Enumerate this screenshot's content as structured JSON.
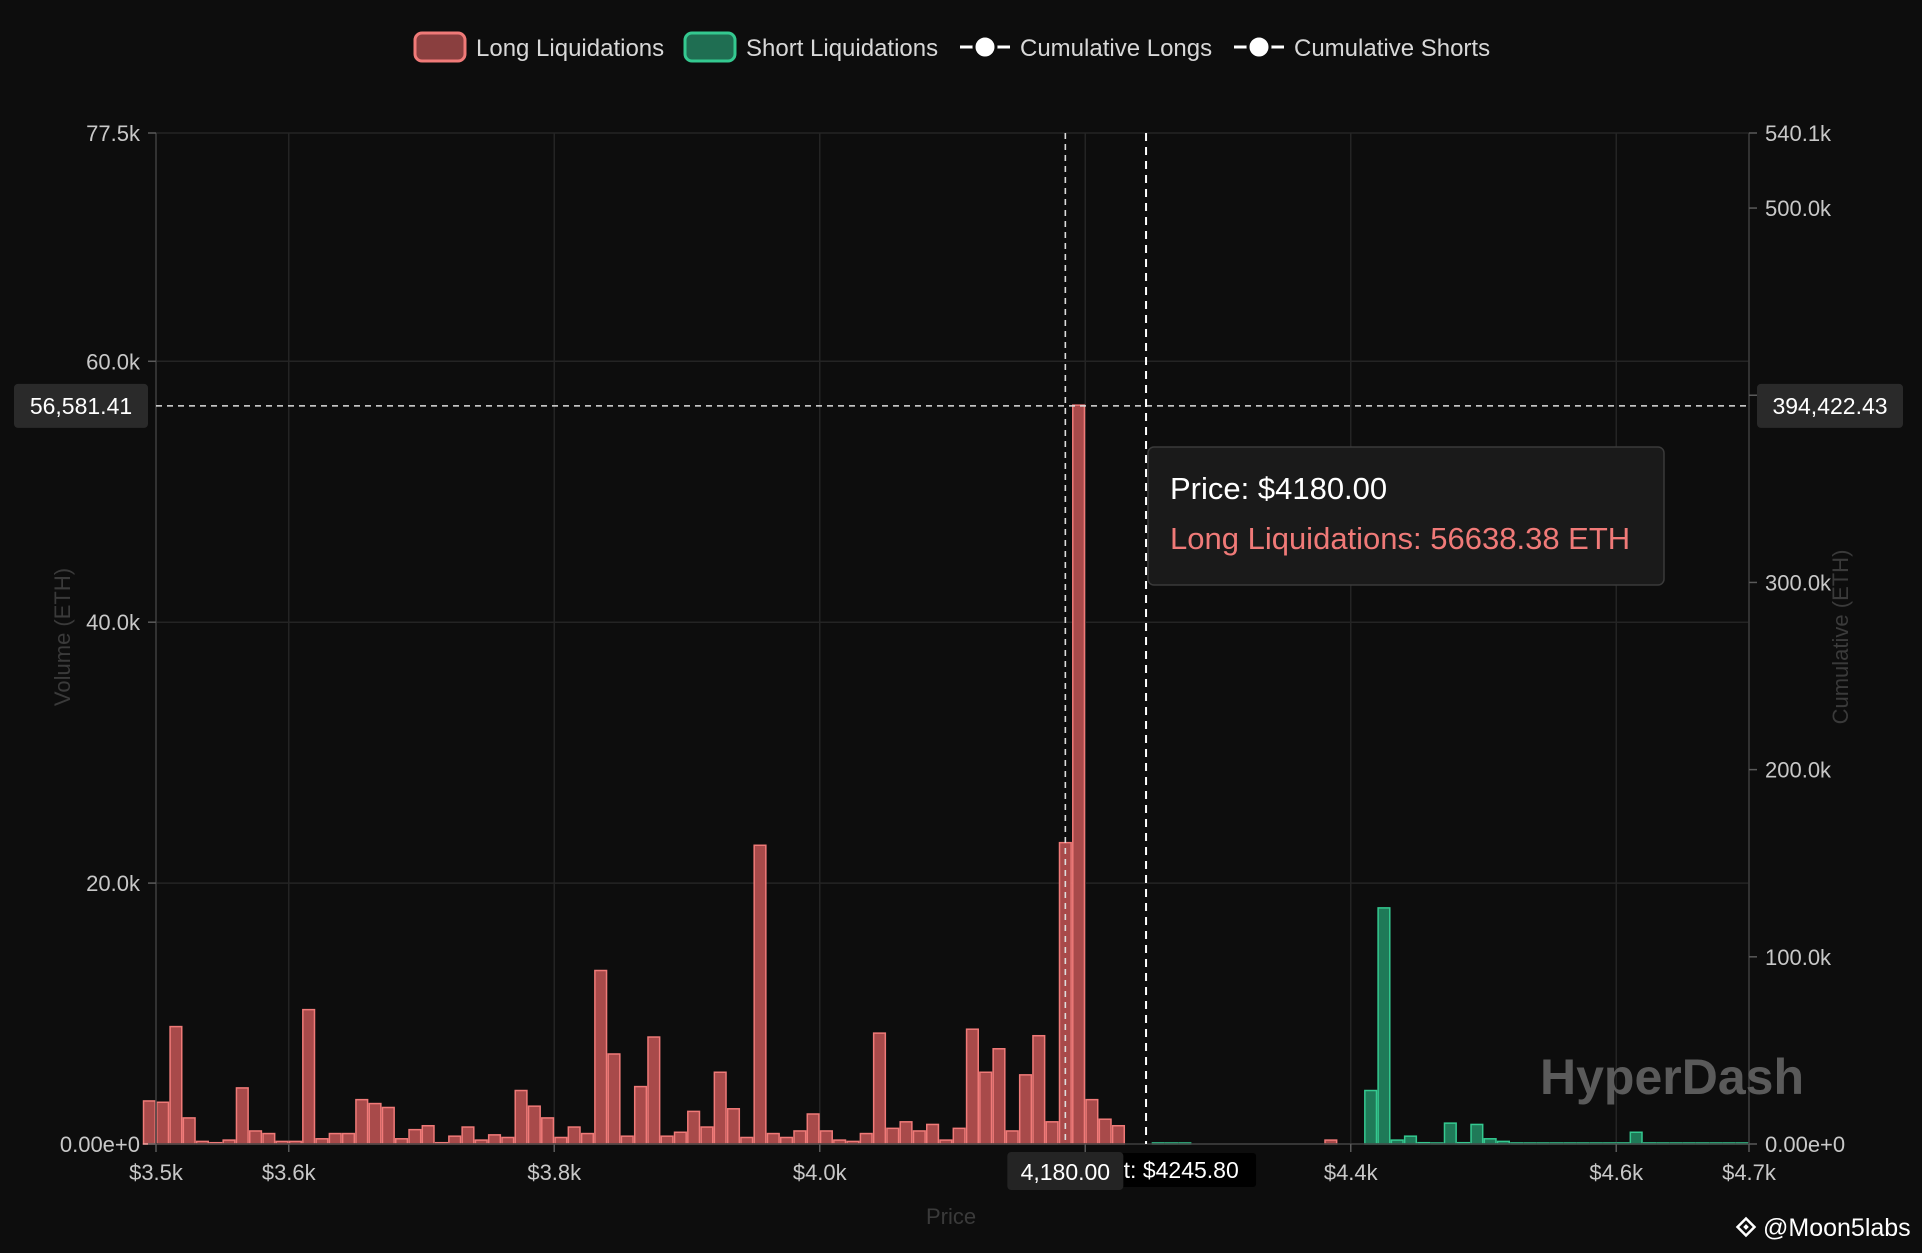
{
  "chart_data": {
    "type": "bar",
    "xlabel": "Price",
    "ylabel": "Volume (ETH)",
    "y2label": "Cumulative (ETH)",
    "xlim": [
      3500,
      4700
    ],
    "ylim": [
      0,
      77500
    ],
    "y2lim": [
      0,
      540100
    ],
    "bin_width": 10,
    "x_ticks": [
      {
        "value": 3500,
        "label": "$3.5k"
      },
      {
        "value": 3600,
        "label": "$3.6k"
      },
      {
        "value": 3800,
        "label": "$3.8k"
      },
      {
        "value": 4000,
        "label": "$4.0k"
      },
      {
        "value": 4200,
        "label": ""
      },
      {
        "value": 4400,
        "label": "$4.4k"
      },
      {
        "value": 4600,
        "label": "$4.6k"
      },
      {
        "value": 4700,
        "label": "$4.7k"
      }
    ],
    "y_ticks": [
      {
        "value": 0,
        "label": "0.00e+0"
      },
      {
        "value": 20000,
        "label": "20.0k"
      },
      {
        "value": 40000,
        "label": "40.0k"
      },
      {
        "value": 60000,
        "label": "60.0k"
      },
      {
        "value": 77500,
        "label": "77.5k"
      }
    ],
    "y2_ticks": [
      {
        "value": 0,
        "label": "0.00e+0"
      },
      {
        "value": 100000,
        "label": "100.0k"
      },
      {
        "value": 200000,
        "label": "200.0k"
      },
      {
        "value": 300000,
        "label": "300.0k"
      },
      {
        "value": 400000,
        "label": "400.0k"
      },
      {
        "value": 500000,
        "label": "500.0k"
      },
      {
        "value": 540100,
        "label": "540.1k"
      }
    ],
    "legend": [
      {
        "name": "Long Liquidations",
        "kind": "box",
        "color": "#f07a78",
        "fill": "#8a3f3f"
      },
      {
        "name": "Short Liquidations",
        "kind": "box",
        "color": "#34c990",
        "fill": "#1f6e52"
      },
      {
        "name": "Cumulative Longs",
        "kind": "line",
        "color": "#ffffff"
      },
      {
        "name": "Cumulative Shorts",
        "kind": "line",
        "color": "#ffffff"
      }
    ],
    "legend_position": "top-center",
    "grid": true,
    "series": [
      {
        "name": "Long Liquidations",
        "color": "#f07a78",
        "fill": "#a84a4a",
        "x": [
          3490,
          3500,
          3510,
          3520,
          3530,
          3540,
          3550,
          3560,
          3570,
          3580,
          3590,
          3600,
          3610,
          3620,
          3630,
          3640,
          3650,
          3660,
          3670,
          3680,
          3690,
          3700,
          3710,
          3720,
          3730,
          3740,
          3750,
          3760,
          3770,
          3780,
          3790,
          3800,
          3810,
          3820,
          3830,
          3840,
          3850,
          3860,
          3870,
          3880,
          3890,
          3900,
          3910,
          3920,
          3930,
          3940,
          3950,
          3960,
          3970,
          3980,
          3990,
          4000,
          4010,
          4020,
          4030,
          4040,
          4050,
          4060,
          4070,
          4080,
          4090,
          4100,
          4110,
          4120,
          4130,
          4140,
          4150,
          4160,
          4170,
          4180,
          4190,
          4200,
          4210,
          4220,
          4380
        ],
        "values": [
          3300,
          3200,
          9000,
          2000,
          200,
          100,
          300,
          4300,
          1000,
          800,
          200,
          200,
          10300,
          400,
          800,
          800,
          3400,
          3100,
          2800,
          400,
          1100,
          1400,
          100,
          600,
          1300,
          300,
          700,
          500,
          4100,
          2900,
          2000,
          500,
          1300,
          800,
          13300,
          6900,
          600,
          4400,
          8200,
          600,
          900,
          2500,
          1300,
          5500,
          2700,
          500,
          22900,
          800,
          500,
          1000,
          2300,
          1000,
          300,
          200,
          800,
          8500,
          1200,
          1700,
          1000,
          1500,
          300,
          1200,
          8800,
          5500,
          7300,
          1000,
          5300,
          8300,
          1700,
          23100,
          56638,
          3400,
          1900,
          1400,
          300
        ]
      },
      {
        "name": "Short Liquidations",
        "color": "#34c990",
        "fill": "#1f7a58",
        "x": [
          4250,
          4260,
          4270,
          4410,
          4420,
          4430,
          4440,
          4450,
          4460,
          4470,
          4480,
          4490,
          4500,
          4510,
          4520,
          4530,
          4540,
          4550,
          4560,
          4570,
          4580,
          4590,
          4600,
          4610,
          4620,
          4630,
          4640,
          4650,
          4660,
          4670,
          4680,
          4690
        ],
        "values": [
          80,
          60,
          50,
          4100,
          18100,
          300,
          600,
          100,
          50,
          1600,
          100,
          1500,
          400,
          200,
          80,
          60,
          50,
          50,
          50,
          50,
          50,
          50,
          80,
          900,
          80,
          60,
          50,
          50,
          50,
          50,
          50,
          50
        ]
      },
      {
        "name": "Cumulative Longs",
        "color": "#ffffff",
        "x": [
          3490,
          3700,
          3900,
          4100,
          4180
        ],
        "values": [
          0,
          0,
          0,
          0,
          0
        ]
      },
      {
        "name": "Cumulative Shorts",
        "color": "#ffffff",
        "x": [
          4250,
          4700
        ],
        "values": [
          0,
          0
        ]
      }
    ],
    "crosshair": {
      "x_value": 4180,
      "x_label": "4,180.00",
      "y_left_label": "56,581.41",
      "y_right_label": "394,422.43",
      "y_value": 56581.41
    },
    "current_price": {
      "value": 4245.8,
      "label": "Current: $4245.80"
    },
    "tooltip": {
      "price_line": "Price: $4180.00",
      "series_line": "Long Liquidations: 56638.38 ETH"
    }
  },
  "watermark": "HyperDash",
  "credit": {
    "handle": "@Moon5labs",
    "icon": "binance-square-logo-icon"
  }
}
